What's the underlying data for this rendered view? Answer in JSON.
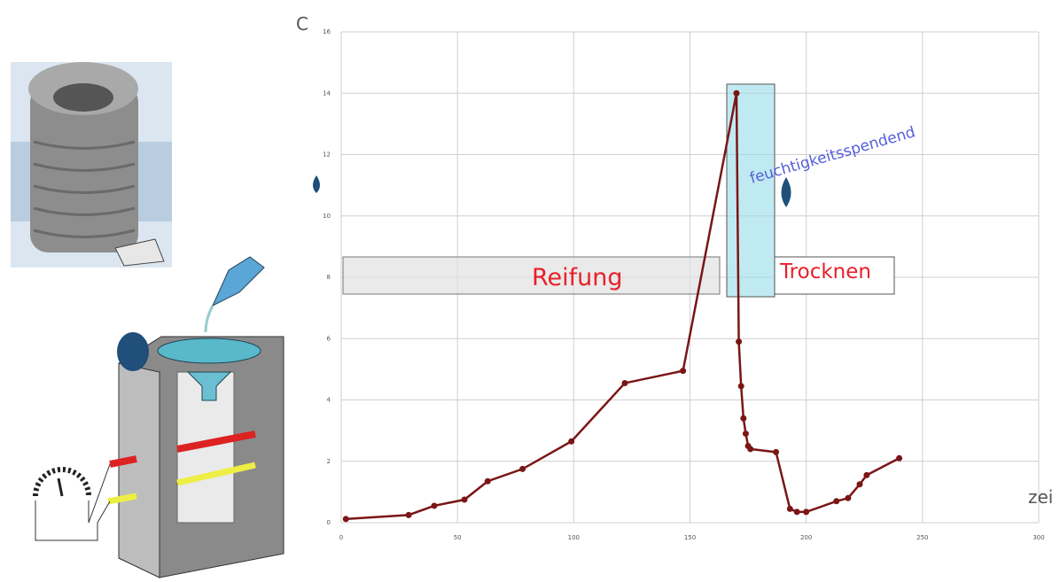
{
  "chart_data": {
    "type": "line",
    "y_label": "C",
    "x_label": "zei",
    "annotations": [
      "Reifung",
      "Trocknen",
      "feuchtigkeitsspendend"
    ],
    "x": [
      2,
      29,
      40,
      53,
      63,
      78,
      99,
      122,
      147,
      170,
      171,
      172,
      173,
      174,
      175,
      176,
      187,
      193,
      196,
      200,
      213,
      218,
      223,
      226,
      240
    ],
    "series": [
      {
        "color": "#7a1616",
        "values": [
          0.12,
          0.25,
          0.55,
          0.75,
          1.35,
          1.75,
          2.65,
          4.55,
          4.95,
          14,
          5.9,
          4.45,
          3.4,
          2.9,
          2.5,
          2.4,
          2.3,
          0.45,
          0.35,
          0.35,
          0.7,
          0.8,
          1.25,
          1.55,
          2.1
        ]
      }
    ],
    "xlim": [
      0,
      300
    ],
    "xticks": [
      0,
      50,
      100,
      150,
      200,
      250,
      300
    ],
    "ylim": [
      0,
      16
    ],
    "yticks": [
      0,
      2,
      4,
      6,
      8,
      10,
      12,
      14,
      16
    ],
    "grid": true
  }
}
